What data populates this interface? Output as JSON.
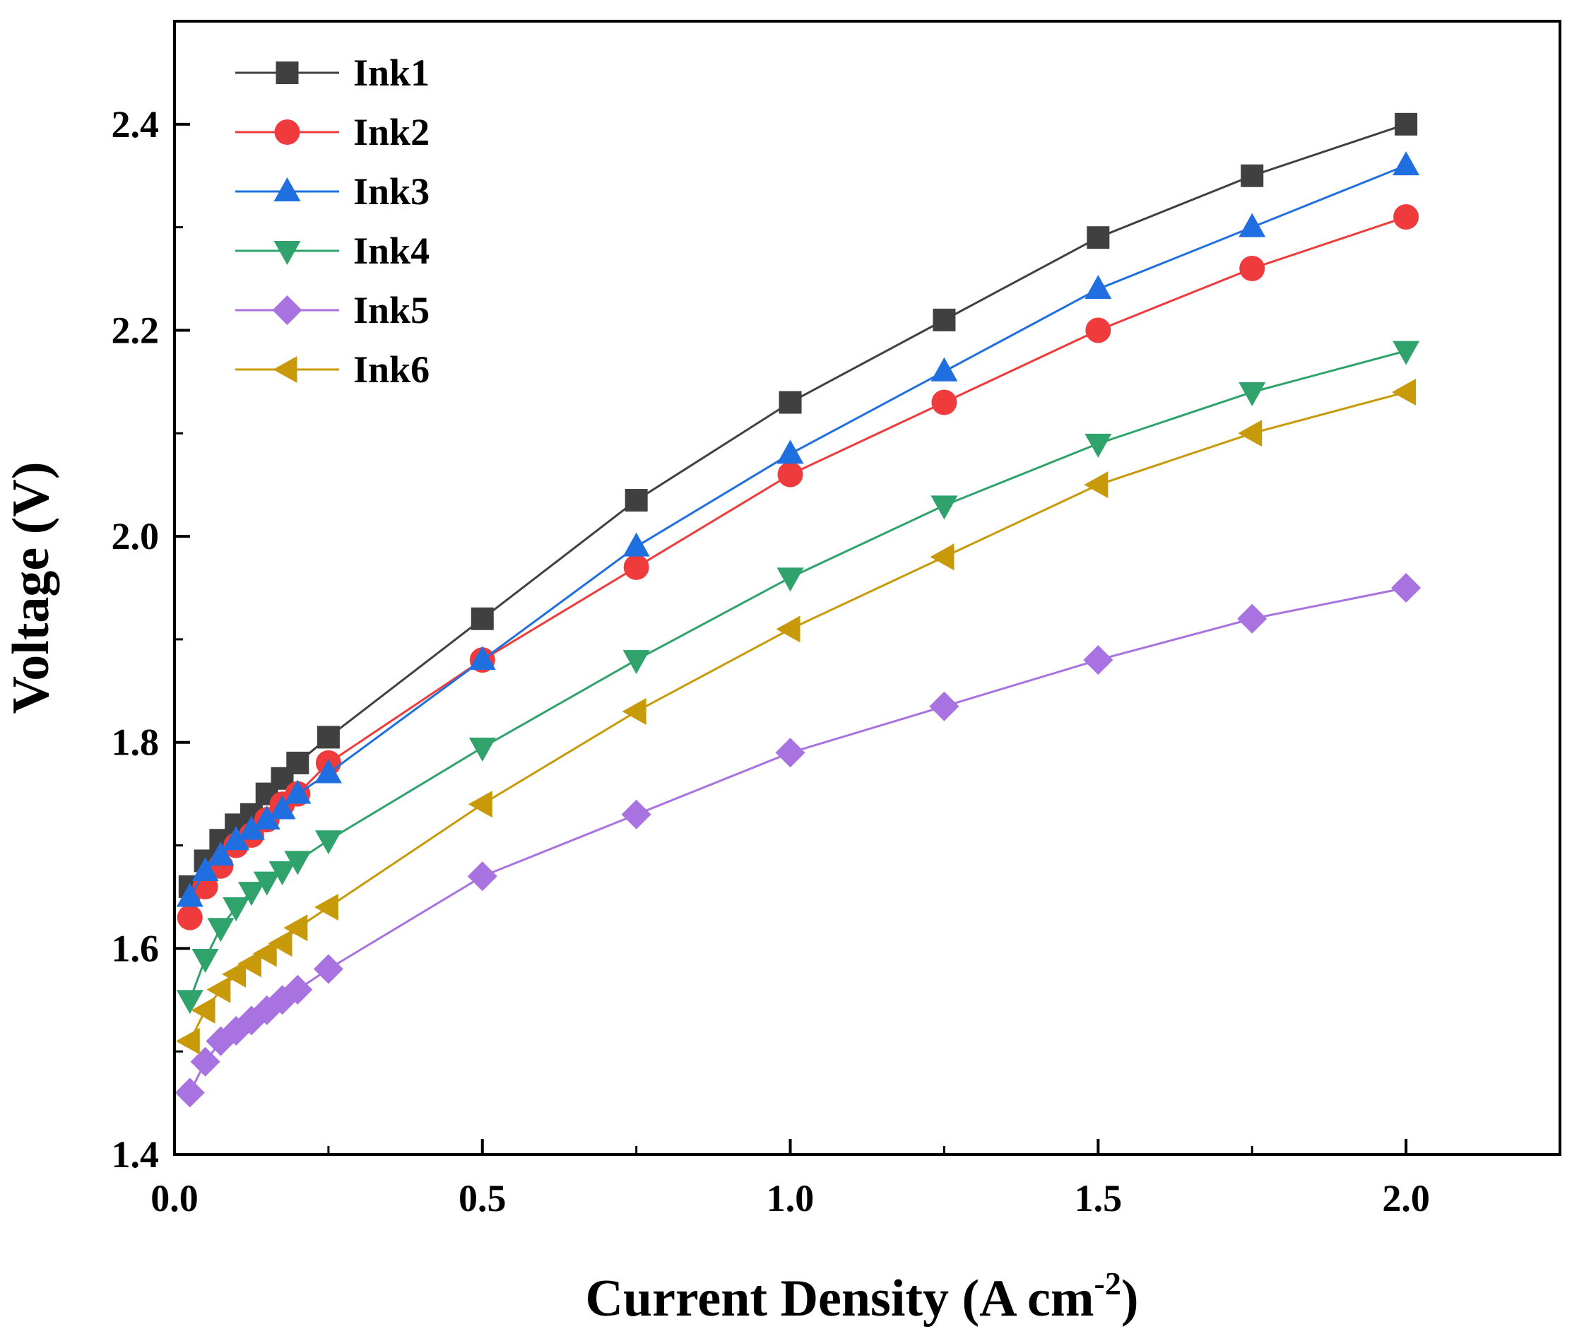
{
  "chart_data": {
    "type": "line",
    "xlabel": "Current Density (A cm",
    "xlabel_sup": "-2",
    "xlabel_close": ")",
    "ylabel": "Voltage (V)",
    "xlim": [
      0,
      2.25
    ],
    "ylim": [
      1.4,
      2.5
    ],
    "xticks": [
      0.0,
      0.5,
      1.0,
      1.5,
      2.0
    ],
    "xtick_labels": [
      "0.0",
      "0.5",
      "1.0",
      "1.5",
      "2.0"
    ],
    "yticks": [
      1.4,
      1.6,
      1.8,
      2.0,
      2.2,
      2.4
    ],
    "ytick_labels": [
      "1.4",
      "1.6",
      "1.8",
      "2.0",
      "2.2",
      "2.4"
    ],
    "x": [
      0.025,
      0.05,
      0.075,
      0.1,
      0.125,
      0.15,
      0.175,
      0.2,
      0.25,
      0.5,
      0.75,
      1.0,
      1.25,
      1.5,
      1.75,
      2.0
    ],
    "legend_position": "top-left",
    "grid": false,
    "series": [
      {
        "name": "Ink1",
        "color": "#404040",
        "marker": "square",
        "values": [
          1.66,
          1.685,
          1.705,
          1.72,
          1.73,
          1.75,
          1.765,
          1.78,
          1.805,
          1.92,
          2.035,
          2.13,
          2.21,
          2.29,
          2.35,
          2.4
        ]
      },
      {
        "name": "Ink2",
        "color": "#ef3b3b",
        "marker": "circle",
        "values": [
          1.63,
          1.66,
          1.68,
          1.7,
          1.71,
          1.725,
          1.74,
          1.75,
          1.78,
          1.88,
          1.97,
          2.06,
          2.13,
          2.2,
          2.26,
          2.31
        ]
      },
      {
        "name": "Ink3",
        "color": "#1f6fe0",
        "marker": "triangle-up",
        "values": [
          1.65,
          1.675,
          1.69,
          1.705,
          1.715,
          1.725,
          1.735,
          1.75,
          1.77,
          1.88,
          1.99,
          2.08,
          2.16,
          2.24,
          2.3,
          2.36
        ]
      },
      {
        "name": "Ink4",
        "color": "#2fa36b",
        "marker": "triangle-down",
        "values": [
          1.55,
          1.59,
          1.62,
          1.64,
          1.655,
          1.665,
          1.675,
          1.685,
          1.705,
          1.795,
          1.88,
          1.96,
          2.03,
          2.09,
          2.14,
          2.18
        ]
      },
      {
        "name": "Ink5",
        "color": "#a873e0",
        "marker": "diamond",
        "values": [
          1.46,
          1.49,
          1.51,
          1.52,
          1.53,
          1.54,
          1.55,
          1.56,
          1.58,
          1.67,
          1.73,
          1.79,
          1.835,
          1.88,
          1.92,
          1.95
        ]
      },
      {
        "name": "Ink6",
        "color": "#c89a0a",
        "marker": "triangle-left",
        "values": [
          1.51,
          1.54,
          1.56,
          1.575,
          1.585,
          1.595,
          1.605,
          1.62,
          1.64,
          1.74,
          1.83,
          1.91,
          1.98,
          2.05,
          2.1,
          2.14
        ]
      }
    ]
  }
}
